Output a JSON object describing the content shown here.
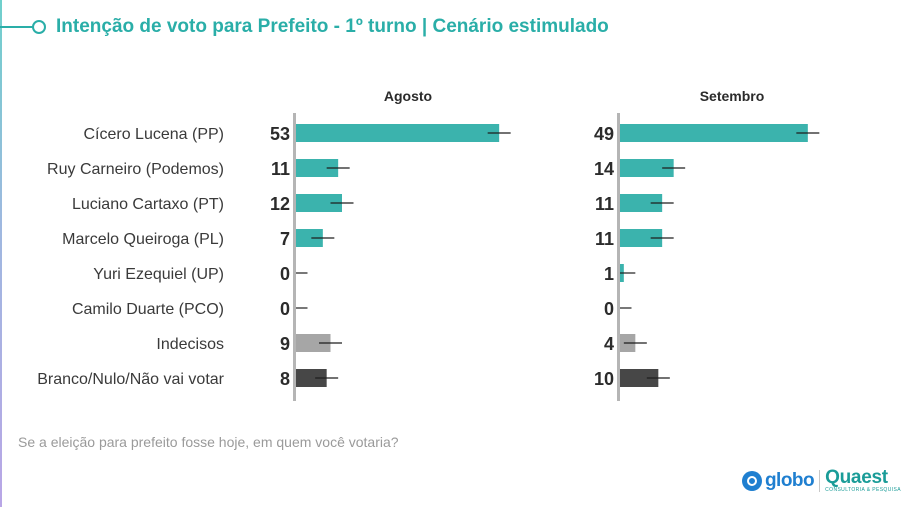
{
  "title": "Intenção de voto para Prefeito - 1º turno | Cenário estimulado",
  "question": "Se a eleição para prefeito fosse hoje, em quem você votaria?",
  "logos": {
    "globo": "globo",
    "quaest": "Quaest",
    "quaest_tagline": "CONSULTORIA & PESQUISA"
  },
  "colors": {
    "teal": "#3bb3ad",
    "gray": "#a6a6a6",
    "dark": "#474747",
    "title": "#2aaea8"
  },
  "chart_data": {
    "type": "bar",
    "orientation": "horizontal",
    "categories": [
      "Cícero Lucena (PP)",
      "Ruy Carneiro (Podemos)",
      "Luciano Cartaxo (PT)",
      "Marcelo Queiroga (PL)",
      "Yuri Ezequiel (UP)",
      "Camilo Duarte (PCO)",
      "Indecisos",
      "Branco/Nulo/Não vai votar"
    ],
    "category_colors": [
      "teal",
      "teal",
      "teal",
      "teal",
      "teal",
      "teal",
      "gray",
      "dark"
    ],
    "series": [
      {
        "name": "Agosto",
        "values": [
          53,
          11,
          12,
          7,
          0,
          0,
          9,
          8
        ]
      },
      {
        "name": "Setembro",
        "values": [
          49,
          14,
          11,
          11,
          1,
          0,
          4,
          10
        ]
      }
    ],
    "margin_of_error": 3,
    "xlim": [
      0,
      60
    ],
    "data_labels": true,
    "grid": false,
    "legend": "none"
  }
}
